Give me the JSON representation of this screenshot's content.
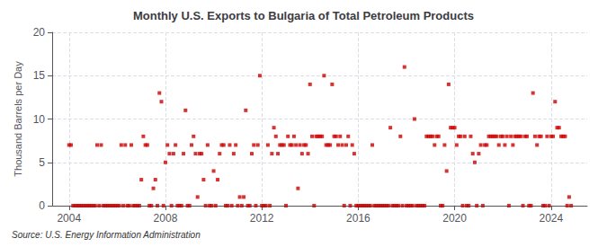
{
  "chart_data": {
    "type": "scatter",
    "title": "Monthly U.S. Exports to Bulgaria of Total Petroleum Products",
    "ylabel": "Thousand Barrels per Day",
    "source": "Source: U.S. Energy Information Administration",
    "color": "#cc0000",
    "marker": "square",
    "grid": true,
    "xlim": [
      2003.3,
      2025.5
    ],
    "xticks": [
      2004,
      2008,
      2012,
      2016,
      2020,
      2024
    ],
    "ylim": [
      0,
      20
    ],
    "yticks": [
      0,
      5,
      10,
      15,
      20
    ],
    "x": [
      2004.0,
      2004.083,
      2004.167,
      2004.25,
      2004.333,
      2004.417,
      2004.5,
      2004.583,
      2004.667,
      2004.75,
      2004.833,
      2004.917,
      2005.0,
      2005.083,
      2005.167,
      2005.25,
      2005.333,
      2005.417,
      2005.5,
      2005.583,
      2005.667,
      2005.75,
      2005.833,
      2005.917,
      2006.0,
      2006.083,
      2006.167,
      2006.25,
      2006.333,
      2006.417,
      2006.5,
      2006.583,
      2006.667,
      2006.75,
      2006.833,
      2006.917,
      2007.0,
      2007.083,
      2007.167,
      2007.25,
      2007.333,
      2007.417,
      2007.5,
      2007.583,
      2007.667,
      2007.75,
      2007.833,
      2007.917,
      2008.0,
      2008.083,
      2008.167,
      2008.25,
      2008.333,
      2008.417,
      2008.5,
      2008.583,
      2008.667,
      2008.75,
      2008.833,
      2008.917,
      2009.0,
      2009.083,
      2009.167,
      2009.25,
      2009.333,
      2009.417,
      2009.5,
      2009.583,
      2009.667,
      2009.75,
      2009.833,
      2009.917,
      2010.0,
      2010.083,
      2010.167,
      2010.25,
      2010.333,
      2010.417,
      2010.5,
      2010.583,
      2010.667,
      2010.75,
      2010.833,
      2010.917,
      2011.0,
      2011.083,
      2011.167,
      2011.25,
      2011.333,
      2011.417,
      2011.5,
      2011.583,
      2011.667,
      2011.75,
      2011.833,
      2011.917,
      2012.0,
      2012.083,
      2012.167,
      2012.25,
      2012.333,
      2012.417,
      2012.5,
      2012.583,
      2012.667,
      2012.75,
      2012.833,
      2012.917,
      2013.0,
      2013.083,
      2013.167,
      2013.25,
      2013.333,
      2013.417,
      2013.5,
      2013.583,
      2013.667,
      2013.75,
      2013.833,
      2013.917,
      2014.0,
      2014.083,
      2014.167,
      2014.25,
      2014.333,
      2014.417,
      2014.5,
      2014.583,
      2014.667,
      2014.75,
      2014.833,
      2014.917,
      2015.0,
      2015.083,
      2015.167,
      2015.25,
      2015.333,
      2015.417,
      2015.5,
      2015.583,
      2015.667,
      2015.75,
      2015.833,
      2015.917,
      2016.0,
      2016.083,
      2016.167,
      2016.25,
      2016.333,
      2016.417,
      2016.5,
      2016.583,
      2016.667,
      2016.75,
      2016.833,
      2016.917,
      2017.0,
      2017.083,
      2017.167,
      2017.25,
      2017.333,
      2017.417,
      2017.5,
      2017.583,
      2017.667,
      2017.75,
      2017.833,
      2017.917,
      2018.0,
      2018.083,
      2018.167,
      2018.25,
      2018.333,
      2018.417,
      2018.5,
      2018.583,
      2018.667,
      2018.75,
      2018.833,
      2018.917,
      2019.0,
      2019.083,
      2019.167,
      2019.25,
      2019.333,
      2019.417,
      2019.5,
      2019.583,
      2019.667,
      2019.75,
      2019.833,
      2019.917,
      2020.0,
      2020.083,
      2020.167,
      2020.25,
      2020.333,
      2020.417,
      2020.5,
      2020.583,
      2020.667,
      2020.75,
      2020.833,
      2020.917,
      2021.0,
      2021.083,
      2021.167,
      2021.25,
      2021.333,
      2021.417,
      2021.5,
      2021.583,
      2021.667,
      2021.75,
      2021.833,
      2021.917,
      2022.0,
      2022.083,
      2022.167,
      2022.25,
      2022.333,
      2022.417,
      2022.5,
      2022.583,
      2022.667,
      2022.75,
      2022.833,
      2022.917,
      2023.0,
      2023.083,
      2023.167,
      2023.25,
      2023.333,
      2023.417,
      2023.5,
      2023.583,
      2023.667,
      2023.75,
      2023.833,
      2023.917,
      2024.0,
      2024.083,
      2024.167,
      2024.25,
      2024.333,
      2024.417,
      2024.5,
      2024.583,
      2024.667,
      2024.75,
      2024.833
    ],
    "values": [
      7,
      7,
      0,
      0,
      0,
      0,
      0,
      0,
      0,
      0,
      0,
      0,
      0,
      0,
      7,
      0,
      7,
      0,
      0,
      0,
      0,
      0,
      0,
      0,
      0,
      0,
      7,
      0,
      7,
      0,
      0,
      7,
      0,
      0,
      0,
      0,
      3,
      8,
      7,
      7,
      0,
      0,
      2,
      3,
      0,
      13,
      12,
      0,
      5,
      7,
      6,
      0,
      6,
      7,
      0,
      0,
      0,
      6,
      11,
      0,
      0,
      7,
      8,
      6,
      1,
      6,
      6,
      3,
      0,
      7,
      0,
      0,
      4,
      0,
      3,
      6,
      7,
      7,
      0,
      0,
      7,
      0,
      6,
      7,
      0,
      1,
      0,
      1,
      11,
      0,
      0,
      6,
      7,
      0,
      7,
      15,
      0,
      0,
      0,
      7,
      0,
      6,
      9,
      8,
      6,
      7,
      7,
      7,
      0,
      8,
      7,
      7,
      8,
      7,
      2,
      7,
      6,
      7,
      7,
      6,
      14,
      8,
      0,
      8,
      8,
      8,
      8,
      15,
      7,
      7,
      7,
      14,
      8,
      8,
      7,
      8,
      7,
      0,
      7,
      8,
      0,
      7,
      6,
      0,
      0,
      0,
      0,
      0,
      0,
      0,
      0,
      7,
      0,
      0,
      0,
      0,
      0,
      0,
      0,
      0,
      9,
      0,
      0,
      0,
      0,
      8,
      0,
      16,
      0,
      0,
      0,
      0,
      10,
      0,
      0,
      0,
      0,
      0,
      8,
      8,
      8,
      8,
      7,
      8,
      8,
      0,
      0,
      7,
      4,
      14,
      9,
      9,
      9,
      7,
      8,
      8,
      0,
      8,
      0,
      0,
      8,
      6,
      5,
      0,
      6,
      7,
      0,
      7,
      7,
      8,
      8,
      8,
      8,
      8,
      7,
      8,
      8,
      7,
      8,
      0,
      8,
      7,
      8,
      8,
      8,
      8,
      0,
      8,
      8,
      0,
      0,
      13,
      8,
      7,
      8,
      8,
      0,
      0,
      8,
      0,
      8,
      8,
      12,
      9,
      9,
      8,
      8,
      8,
      0,
      1,
      0
    ]
  }
}
